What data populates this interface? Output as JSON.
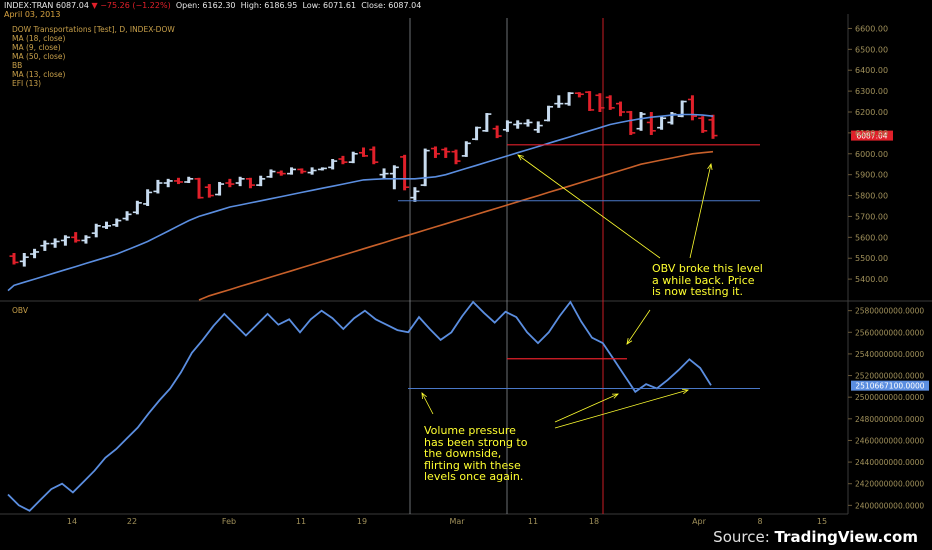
{
  "header": {
    "symbol": "INDEX:TRAN",
    "last": "6087.04",
    "change": "−75.26 (−1.22%)",
    "open_label": "Open:",
    "open": "6162.30",
    "high_label": "High:",
    "high": "6186.95",
    "low_label": "Low:",
    "low": "6071.61",
    "close_label": "Close:",
    "close": "6087.04",
    "date": "April 03, 2013"
  },
  "indicators": [
    "DOW Transportations [Test], D, INDEX-DOW",
    "MA (18, close)",
    "MA (9, close)",
    "MA (50, close)",
    "BB",
    "MA (13, close)",
    "EFI (13)"
  ],
  "obv_label": "OBV",
  "annotations": {
    "obv_note": "OBV broke this level\na while back. Price\nis now testing it.",
    "volume_note": "Volume pressure\nhas been strong to\nthe downside,\nflirting with these\nlevels once again."
  },
  "source": {
    "prefix": "Source: ",
    "brand": "TradingView.com"
  },
  "colors": {
    "background": "#000000",
    "up_bar": "#c8dcf0",
    "down_bar": "#e0202a",
    "ma_fast": "#5b8ee0",
    "ma_slow": "#c8602a",
    "obv_line": "#5b8ee0",
    "annotation": "#ffff30",
    "level_red": "#e0202a",
    "level_blue": "#4a78c8"
  },
  "chart_data": [
    {
      "type": "ohlc",
      "title": "DOW Transportations [Test], D, INDEX-DOW",
      "x_ticks": [
        "14",
        "22",
        "Feb",
        "11",
        "19",
        "Mar",
        "11",
        "18",
        "Apr",
        "8",
        "15"
      ],
      "y_ticks": [
        "5400.00",
        "5500.00",
        "5600.00",
        "5700.00",
        "5800.00",
        "5900.00",
        "6000.00",
        "6100.00",
        "6200.00",
        "6300.00",
        "6400.00",
        "6500.00",
        "6600.00"
      ],
      "ylim": [
        5300,
        6650
      ],
      "last_price_label": "6087.04",
      "bars": [
        {
          "o": 5510,
          "h": 5525,
          "l": 5470,
          "c": 5480
        },
        {
          "o": 5485,
          "h": 5525,
          "l": 5460,
          "c": 5505
        },
        {
          "o": 5520,
          "h": 5545,
          "l": 5500,
          "c": 5530
        },
        {
          "o": 5560,
          "h": 5585,
          "l": 5535,
          "c": 5570
        },
        {
          "o": 5570,
          "h": 5595,
          "l": 5550,
          "c": 5580
        },
        {
          "o": 5585,
          "h": 5610,
          "l": 5560,
          "c": 5600
        },
        {
          "o": 5600,
          "h": 5625,
          "l": 5575,
          "c": 5585
        },
        {
          "o": 5585,
          "h": 5610,
          "l": 5570,
          "c": 5600
        },
        {
          "o": 5620,
          "h": 5665,
          "l": 5600,
          "c": 5655
        },
        {
          "o": 5650,
          "h": 5675,
          "l": 5640,
          "c": 5655
        },
        {
          "o": 5660,
          "h": 5690,
          "l": 5650,
          "c": 5680
        },
        {
          "o": 5690,
          "h": 5725,
          "l": 5680,
          "c": 5710
        },
        {
          "o": 5720,
          "h": 5775,
          "l": 5710,
          "c": 5765
        },
        {
          "o": 5760,
          "h": 5830,
          "l": 5750,
          "c": 5815
        },
        {
          "o": 5820,
          "h": 5875,
          "l": 5810,
          "c": 5860
        },
        {
          "o": 5860,
          "h": 5880,
          "l": 5840,
          "c": 5870
        },
        {
          "o": 5870,
          "h": 5885,
          "l": 5855,
          "c": 5865
        },
        {
          "o": 5865,
          "h": 5890,
          "l": 5860,
          "c": 5880
        },
        {
          "o": 5880,
          "h": 5885,
          "l": 5785,
          "c": 5790
        },
        {
          "o": 5840,
          "h": 5855,
          "l": 5790,
          "c": 5800
        },
        {
          "o": 5805,
          "h": 5865,
          "l": 5800,
          "c": 5855
        },
        {
          "o": 5860,
          "h": 5880,
          "l": 5840,
          "c": 5855
        },
        {
          "o": 5860,
          "h": 5890,
          "l": 5845,
          "c": 5880
        },
        {
          "o": 5880,
          "h": 5885,
          "l": 5835,
          "c": 5850
        },
        {
          "o": 5850,
          "h": 5895,
          "l": 5845,
          "c": 5880
        },
        {
          "o": 5890,
          "h": 5925,
          "l": 5885,
          "c": 5915
        },
        {
          "o": 5910,
          "h": 5920,
          "l": 5895,
          "c": 5905
        },
        {
          "o": 5905,
          "h": 5935,
          "l": 5900,
          "c": 5925
        },
        {
          "o": 5925,
          "h": 5930,
          "l": 5905,
          "c": 5915
        },
        {
          "o": 5910,
          "h": 5935,
          "l": 5900,
          "c": 5920
        },
        {
          "o": 5925,
          "h": 5935,
          "l": 5920,
          "c": 5930
        },
        {
          "o": 5935,
          "h": 5975,
          "l": 5925,
          "c": 5965
        },
        {
          "o": 5975,
          "h": 5990,
          "l": 5950,
          "c": 5960
        },
        {
          "o": 5960,
          "h": 6010,
          "l": 5955,
          "c": 6000
        },
        {
          "o": 6005,
          "h": 6030,
          "l": 5985,
          "c": 5990
        },
        {
          "o": 6020,
          "h": 6035,
          "l": 5950,
          "c": 5960
        },
        {
          "o": 5900,
          "h": 5930,
          "l": 5880,
          "c": 5905
        },
        {
          "o": 5905,
          "h": 5945,
          "l": 5830,
          "c": 5935
        },
        {
          "o": 5985,
          "h": 5995,
          "l": 5825,
          "c": 5840
        },
        {
          "o": 5790,
          "h": 5840,
          "l": 5770,
          "c": 5820
        },
        {
          "o": 5850,
          "h": 6025,
          "l": 5845,
          "c": 6015
        },
        {
          "o": 6025,
          "h": 6035,
          "l": 5980,
          "c": 6000
        },
        {
          "o": 6020,
          "h": 6030,
          "l": 5980,
          "c": 6010
        },
        {
          "o": 6010,
          "h": 6020,
          "l": 5950,
          "c": 5965
        },
        {
          "o": 5990,
          "h": 6060,
          "l": 5985,
          "c": 6050
        },
        {
          "o": 6070,
          "h": 6130,
          "l": 6065,
          "c": 6125
        },
        {
          "o": 6110,
          "h": 6195,
          "l": 6105,
          "c": 6190
        },
        {
          "o": 6120,
          "h": 6135,
          "l": 6075,
          "c": 6085
        },
        {
          "o": 6115,
          "h": 6160,
          "l": 6105,
          "c": 6150
        },
        {
          "o": 6140,
          "h": 6160,
          "l": 6120,
          "c": 6145
        },
        {
          "o": 6145,
          "h": 6165,
          "l": 6130,
          "c": 6150
        },
        {
          "o": 6115,
          "h": 6155,
          "l": 6100,
          "c": 6135
        },
        {
          "o": 6160,
          "h": 6230,
          "l": 6155,
          "c": 6225
        },
        {
          "o": 6240,
          "h": 6280,
          "l": 6220,
          "c": 6240
        },
        {
          "o": 6240,
          "h": 6295,
          "l": 6230,
          "c": 6290
        },
        {
          "o": 6290,
          "h": 6295,
          "l": 6270,
          "c": 6285
        },
        {
          "o": 6295,
          "h": 6300,
          "l": 6205,
          "c": 6210
        },
        {
          "o": 6280,
          "h": 6290,
          "l": 6200,
          "c": 6220
        },
        {
          "o": 6270,
          "h": 6280,
          "l": 6210,
          "c": 6220
        },
        {
          "o": 6240,
          "h": 6250,
          "l": 6180,
          "c": 6200
        },
        {
          "o": 6200,
          "h": 6205,
          "l": 6090,
          "c": 6100
        },
        {
          "o": 6120,
          "h": 6200,
          "l": 6110,
          "c": 6190
        },
        {
          "o": 6150,
          "h": 6200,
          "l": 6090,
          "c": 6110
        },
        {
          "o": 6125,
          "h": 6180,
          "l": 6115,
          "c": 6170
        },
        {
          "o": 6150,
          "h": 6200,
          "l": 6140,
          "c": 6190
        },
        {
          "o": 6180,
          "h": 6255,
          "l": 6175,
          "c": 6250
        },
        {
          "o": 6260,
          "h": 6280,
          "l": 6160,
          "c": 6180
        },
        {
          "o": 6170,
          "h": 6180,
          "l": 6100,
          "c": 6110
        },
        {
          "o": 6162.3,
          "h": 6186.95,
          "l": 6071.61,
          "c": 6087.04
        }
      ],
      "ma_fast": [
        5370,
        5385,
        5400,
        5415,
        5430,
        5445,
        5460,
        5475,
        5490,
        5505,
        5520,
        5540,
        5560,
        5580,
        5605,
        5630,
        5655,
        5680,
        5700,
        5715,
        5730,
        5745,
        5755,
        5765,
        5775,
        5785,
        5795,
        5805,
        5815,
        5825,
        5835,
        5845,
        5855,
        5865,
        5875,
        5878,
        5880,
        5880,
        5880,
        5880,
        5885,
        5890,
        5900,
        5915,
        5930,
        5945,
        5960,
        5975,
        5990,
        6005,
        6020,
        6035,
        6050,
        6065,
        6080,
        6095,
        6110,
        6125,
        6140,
        6150,
        6160,
        6168,
        6175,
        6180,
        6185,
        6188,
        6188,
        6185,
        6180
      ],
      "ma_slow": [
        null,
        null,
        null,
        null,
        null,
        null,
        null,
        null,
        null,
        null,
        null,
        null,
        null,
        null,
        null,
        null,
        null,
        null,
        5300,
        5320,
        5335,
        5350,
        5365,
        5380,
        5395,
        5410,
        5425,
        5440,
        5455,
        5470,
        5485,
        5500,
        5515,
        5530,
        5545,
        5560,
        5575,
        5590,
        5605,
        5620,
        5635,
        5650,
        5665,
        5680,
        5695,
        5710,
        5725,
        5740,
        5755,
        5770,
        5785,
        5800,
        5815,
        5830,
        5845,
        5860,
        5875,
        5890,
        5905,
        5920,
        5935,
        5950,
        5960,
        5970,
        5980,
        5990,
        6000,
        6005,
        6010
      ],
      "levels": [
        {
          "name": "red-resistance",
          "value": 6043,
          "color": "red"
        },
        {
          "name": "blue-support",
          "value": 5775,
          "color": "blue"
        }
      ]
    },
    {
      "type": "line",
      "title": "OBV",
      "y_ticks": [
        "2400000000.0000",
        "2420000000.0000",
        "2440000000.0000",
        "2460000000.0000",
        "2480000000.0000",
        "2500000000.0000",
        "2520000000.0000",
        "2540000000.0000",
        "2560000000.0000",
        "2580000000.0000"
      ],
      "ylim": [
        2392000000,
        2588000000
      ],
      "last_value_label": "2510667100.0000",
      "series": [
        {
          "name": "OBV",
          "values": [
            2410000000,
            2400000000,
            2395000000,
            2405000000,
            2415000000,
            2420000000,
            2412000000,
            2422000000,
            2432000000,
            2444000000,
            2452000000,
            2462000000,
            2472000000,
            2485000000,
            2497000000,
            2508000000,
            2523000000,
            2541000000,
            2553000000,
            2566000000,
            2577000000,
            2567000000,
            2557000000,
            2567000000,
            2577000000,
            2567000000,
            2572000000,
            2560000000,
            2572000000,
            2580000000,
            2573000000,
            2563000000,
            2573000000,
            2580000000,
            2572000000,
            2567000000,
            2562000000,
            2560000000,
            2574000000,
            2563000000,
            2553000000,
            2560000000,
            2575000000,
            2588000000,
            2578000000,
            2569000000,
            2579000000,
            2574000000,
            2560000000,
            2550000000,
            2560000000,
            2575000000,
            2588000000,
            2570000000,
            2555000000,
            2550000000,
            2535000000,
            2520000000,
            2505000000,
            2512000000,
            2508000000,
            2516000000,
            2525000000,
            2535000000,
            2527000000,
            2511000000
          ]
        }
      ],
      "levels": [
        {
          "name": "red-level",
          "value": 2535500000,
          "color": "red"
        },
        {
          "name": "blue-level",
          "value": 2508000000,
          "color": "blue"
        }
      ]
    }
  ]
}
